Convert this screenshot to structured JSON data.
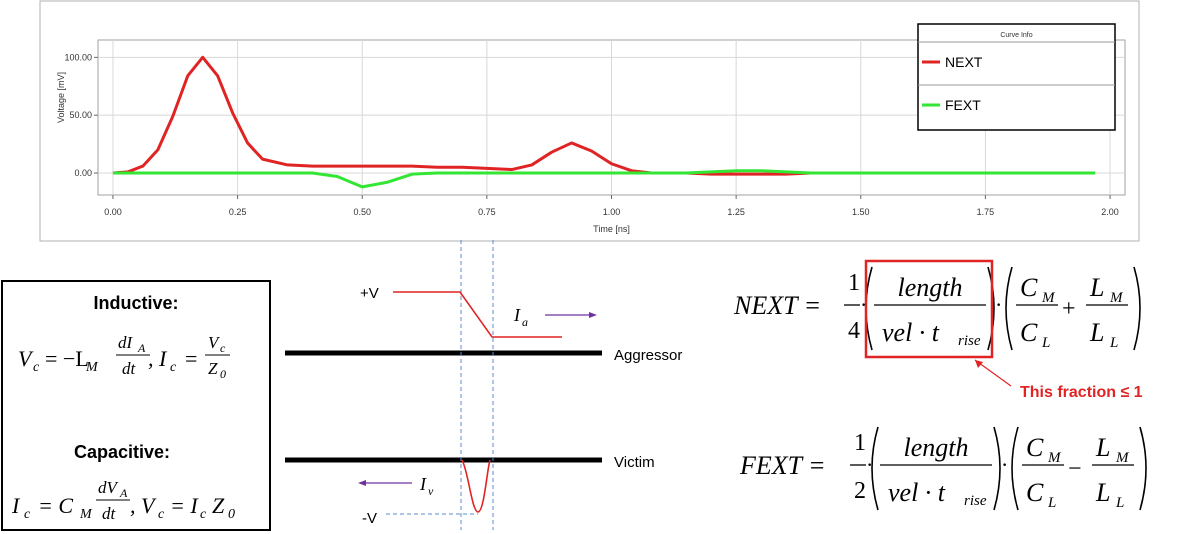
{
  "chart_data": {
    "type": "line",
    "x_label": "Time [ns]",
    "y_label": "Voltage [mV]",
    "legend_title": "Curve Info",
    "legend": "top-right",
    "grid": true,
    "x": [
      0,
      0.03,
      0.06,
      0.09,
      0.12,
      0.15,
      0.18,
      0.21,
      0.24,
      0.27,
      0.3,
      0.35,
      0.4,
      0.45,
      0.5,
      0.55,
      0.6,
      0.65,
      0.7,
      0.75,
      0.8,
      0.84,
      0.88,
      0.92,
      0.96,
      1.0,
      1.04,
      1.08,
      1.15,
      1.2,
      1.25,
      1.3,
      1.35,
      1.4,
      1.45,
      1.6,
      1.8,
      1.97
    ],
    "series": [
      {
        "name": "NEXT",
        "color": "#e02424",
        "values": [
          0,
          1,
          6,
          20,
          49,
          84,
          100,
          84,
          52,
          26,
          12,
          7,
          6,
          6,
          6,
          6,
          6,
          5,
          5,
          4,
          3,
          7,
          18,
          26,
          19,
          8,
          2,
          0,
          0,
          -1,
          -1,
          -1,
          -1,
          0,
          0,
          0,
          0,
          0
        ]
      },
      {
        "name": "FEXT",
        "color": "#33e633",
        "values": [
          0,
          0,
          0,
          0,
          0,
          0,
          0,
          0,
          0,
          0,
          0,
          0,
          0,
          -3,
          -12,
          -8,
          -1,
          0,
          0,
          0,
          0,
          0,
          0,
          0,
          0,
          0,
          0,
          0,
          0,
          1,
          2,
          2,
          1,
          0,
          0,
          0,
          0,
          0
        ]
      }
    ],
    "xlim": [
      -0.03,
      2.03
    ],
    "ylim": [
      -19,
      115
    ],
    "xticks": [
      {
        "value": 0,
        "label": "0.00"
      },
      {
        "value": 0.25,
        "label": "0.25"
      },
      {
        "value": 0.5,
        "label": "0.50"
      },
      {
        "value": 0.75,
        "label": "0.75"
      },
      {
        "value": 1,
        "label": "1.00"
      },
      {
        "value": 1.25,
        "label": "1.25"
      },
      {
        "value": 1.5,
        "label": "1.50"
      },
      {
        "value": 1.75,
        "label": "1.75"
      },
      {
        "value": 2,
        "label": "2.00"
      }
    ],
    "yticks": [
      {
        "value": 0,
        "label": "0.00"
      },
      {
        "value": 50,
        "label": "50.00"
      },
      {
        "value": 100,
        "label": "100.00"
      }
    ]
  },
  "inductive": {
    "title": "Inductive:",
    "formula": [
      "V",
      "c",
      "= −L",
      "M",
      "dI",
      "A",
      "dt",
      ", I",
      "c",
      "=",
      "V",
      "c",
      "Z",
      "0"
    ]
  },
  "capacitive": {
    "title": "Capacitive:",
    "formula": [
      "I",
      "c",
      "= C",
      "M",
      "dV",
      "A",
      "dt",
      ", V",
      "c",
      "= I",
      "c",
      "Z",
      "0"
    ]
  },
  "diagram": {
    "plus_v": "+V",
    "minus_v": "-V",
    "aggressor": "Aggressor",
    "victim": "Victim",
    "ia": [
      "I",
      "a"
    ],
    "iv": [
      "I",
      "v"
    ]
  },
  "next_formula": [
    "NEXT =",
    "1",
    "4",
    "·",
    "length",
    "vel · t",
    "rise",
    "·",
    "C",
    "M",
    "C",
    "L",
    "+",
    "L",
    "M",
    "L",
    "L"
  ],
  "fext_formula": [
    "FEXT =",
    "1",
    "2",
    "·",
    "length",
    "vel · t",
    "rise",
    "·",
    "C",
    "M",
    "C",
    "L",
    "−",
    "L",
    "M",
    "L",
    "L"
  ],
  "annotation": "This fraction ≤ 1"
}
